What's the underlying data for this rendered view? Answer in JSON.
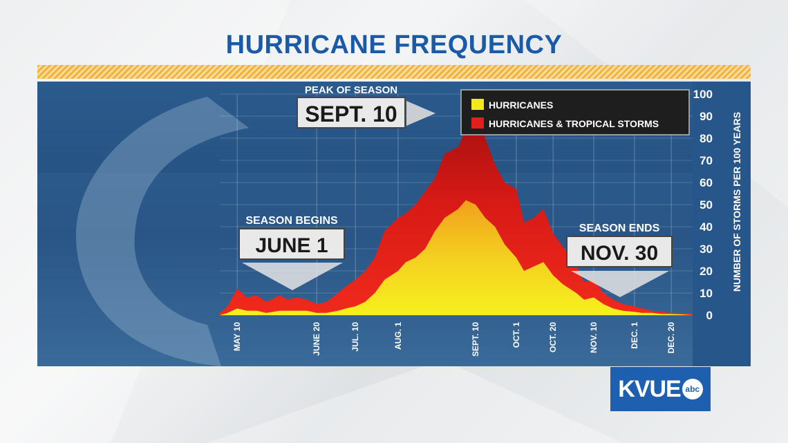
{
  "title": "HURRICANE FREQUENCY",
  "logo": {
    "text": "KVUE",
    "badge": "abc"
  },
  "colors": {
    "hurricanes": "#f2e81e",
    "hurricanes_and_tropical_storms": "#e0201b",
    "title": "#1a5aa6",
    "panel": "#1f4f80"
  },
  "annotations": {
    "peak": {
      "caption": "PEAK OF SEASON",
      "date": "SEPT. 10"
    },
    "begin": {
      "caption": "SEASON BEGINS",
      "date": "JUNE 1"
    },
    "end": {
      "caption": "SEASON ENDS",
      "date": "NOV. 30"
    }
  },
  "chart_data": {
    "type": "area",
    "title": "HURRICANE FREQUENCY",
    "ylabel": "NUMBER OF STORMS PER 100 YEARS",
    "xlabel": "",
    "ylim": [
      0,
      100
    ],
    "y_ticks": [
      0,
      10,
      20,
      30,
      40,
      50,
      60,
      70,
      80,
      90,
      100
    ],
    "x_tick_labels": [
      "MAY 10",
      "JUNE 20",
      "JUL. 10",
      "AUG. 1",
      "SEPT. 10",
      "OCT. 1",
      "OCT. 20",
      "NOV. 10",
      "DEC. 1",
      "DEC. 20"
    ],
    "grid": true,
    "legend_position": "top-right",
    "series": [
      {
        "name": "HURRICANES & TROPICAL STORMS",
        "x": [
          "May 1",
          "May 5",
          "May 10",
          "May 15",
          "May 20",
          "May 25",
          "Jun 1",
          "Jun 5",
          "Jun 10",
          "Jun 15",
          "Jun 20",
          "Jun 25",
          "Jul 1",
          "Jul 5",
          "Jul 10",
          "Jul 15",
          "Jul 20",
          "Jul 25",
          "Aug 1",
          "Aug 5",
          "Aug 10",
          "Aug 15",
          "Aug 20",
          "Aug 25",
          "Sep 1",
          "Sep 5",
          "Sep 10",
          "Sep 15",
          "Sep 20",
          "Sep 25",
          "Oct 1",
          "Oct 5",
          "Oct 10",
          "Oct 15",
          "Oct 20",
          "Oct 25",
          "Nov 1",
          "Nov 5",
          "Nov 10",
          "Nov 15",
          "Nov 20",
          "Nov 25",
          "Dec 1",
          "Dec 5",
          "Dec 10",
          "Dec 15",
          "Dec 20",
          "Dec 25",
          "Dec 31"
        ],
        "values": [
          1,
          4,
          12,
          8,
          9,
          6,
          9,
          7,
          8,
          7,
          5,
          6,
          10,
          13,
          16,
          20,
          26,
          38,
          44,
          46,
          50,
          56,
          62,
          73,
          76,
          84,
          92,
          80,
          68,
          60,
          57,
          42,
          44,
          48,
          37,
          31,
          22,
          15,
          16,
          10,
          7,
          5,
          4,
          3,
          2,
          1.5,
          1,
          1,
          0.5
        ]
      },
      {
        "name": "HURRICANES",
        "x": [
          "May 1",
          "May 5",
          "May 10",
          "May 15",
          "May 20",
          "May 25",
          "Jun 1",
          "Jun 5",
          "Jun 10",
          "Jun 15",
          "Jun 20",
          "Jun 25",
          "Jul 1",
          "Jul 5",
          "Jul 10",
          "Jul 15",
          "Jul 20",
          "Jul 25",
          "Aug 1",
          "Aug 5",
          "Aug 10",
          "Aug 15",
          "Aug 20",
          "Aug 25",
          "Sep 1",
          "Sep 5",
          "Sep 10",
          "Sep 15",
          "Sep 20",
          "Sep 25",
          "Oct 1",
          "Oct 5",
          "Oct 10",
          "Oct 15",
          "Oct 20",
          "Oct 25",
          "Nov 1",
          "Nov 5",
          "Nov 10",
          "Nov 15",
          "Nov 20",
          "Nov 25",
          "Dec 1",
          "Dec 5",
          "Dec 10",
          "Dec 15",
          "Dec 20",
          "Dec 25",
          "Dec 31"
        ],
        "values": [
          0,
          1,
          3,
          2,
          2,
          1,
          2,
          2,
          2,
          2,
          1,
          1,
          2,
          3,
          4,
          6,
          10,
          16,
          20,
          24,
          26,
          30,
          38,
          44,
          48,
          52,
          50,
          44,
          40,
          32,
          26,
          20,
          22,
          24,
          18,
          14,
          10,
          7,
          8,
          5,
          3,
          2,
          1.5,
          1,
          1,
          0.5,
          0.5,
          0.3,
          0
        ]
      }
    ]
  }
}
